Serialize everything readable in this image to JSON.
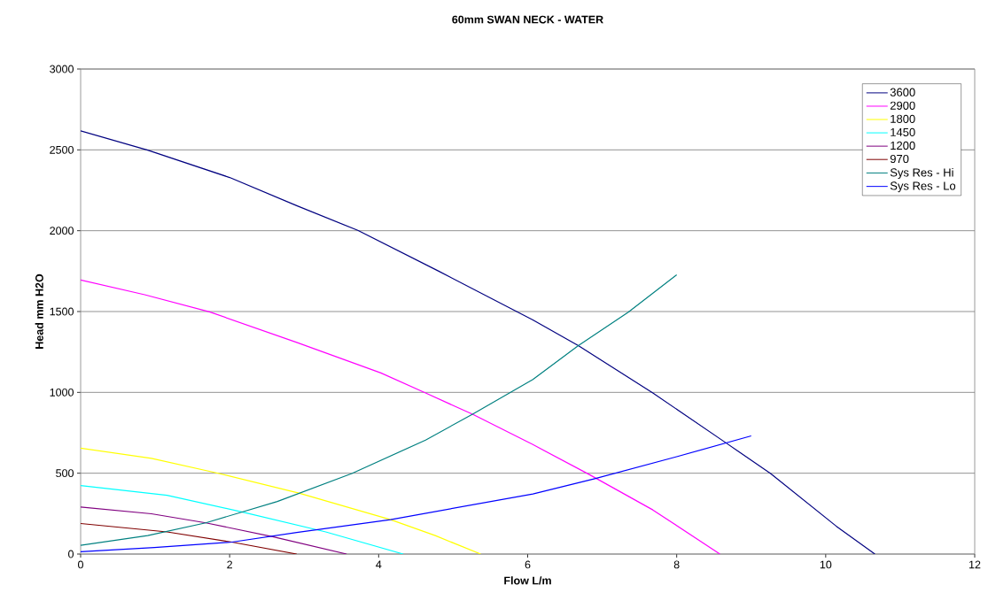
{
  "chart_data": {
    "type": "line",
    "title": "60mm SWAN NECK - WATER",
    "xlabel": "Flow L/m",
    "ylabel": "Head mm H2O",
    "xlim": [
      0,
      12
    ],
    "xticks": [
      0,
      2,
      4,
      6,
      8,
      10,
      12
    ],
    "ylim": [
      0,
      3000
    ],
    "yticks": [
      0,
      500,
      1000,
      1500,
      2000,
      2500,
      3000
    ],
    "grid": "y",
    "legend": "top right",
    "marker": "none",
    "line_style": "solid",
    "series": [
      {
        "name": "3600",
        "color": "#000080",
        "x": [
          0,
          0.9,
          2,
          2.9,
          3.72,
          4.8,
          6.07,
          6.68,
          7.68,
          8.67,
          9.26,
          10.14,
          10.66
        ],
        "values": [
          2618,
          2498,
          2329,
          2155,
          2002,
          1751,
          1448,
          1289,
          996,
          685,
          498,
          173,
          0
        ]
      },
      {
        "name": "2900",
        "color": "#ff00ff",
        "x": [
          0,
          0.86,
          1.73,
          2.9,
          4.03,
          4.63,
          5.26,
          6.07,
          6.81,
          7.68,
          8.58
        ],
        "values": [
          1695,
          1604,
          1498,
          1309,
          1120,
          996,
          865,
          677,
          496,
          273,
          0
        ]
      },
      {
        "name": "1800",
        "color": "#ffff00",
        "x": [
          0,
          0.95,
          1.86,
          2.94,
          4.16,
          4.76,
          5.37
        ],
        "values": [
          655,
          592,
          498,
          376,
          213,
          114,
          0
        ]
      },
      {
        "name": "1450",
        "color": "#00ffff",
        "x": [
          0,
          1.16,
          2.2,
          3.29,
          4.33
        ],
        "values": [
          424,
          363,
          257,
          137,
          0
        ]
      },
      {
        "name": "1200",
        "color": "#800080",
        "x": [
          0,
          0.95,
          1.68,
          2.59,
          3.57
        ],
        "values": [
          291,
          249,
          193,
          106,
          0
        ]
      },
      {
        "name": "970",
        "color": "#800000",
        "x": [
          0,
          1.16,
          2.03,
          2.9
        ],
        "values": [
          189,
          137,
          74,
          0
        ]
      },
      {
        "name": "Sys Res - Hi",
        "color": "#008080",
        "x": [
          0,
          0.9,
          1.68,
          2.64,
          3.64,
          4.63,
          5.26,
          6.07,
          6.68,
          7.35,
          8
        ],
        "values": [
          54,
          114,
          193,
          325,
          498,
          705,
          865,
          1080,
          1289,
          1496,
          1727
        ]
      },
      {
        "name": "Sys Res - Lo",
        "color": "#0000ff",
        "x": [
          0,
          0.99,
          2.03,
          2.9,
          4.16,
          6.07,
          6.9,
          8,
          9
        ],
        "values": [
          14,
          40,
          74,
          133,
          213,
          372,
          466,
          602,
          731
        ]
      }
    ]
  }
}
